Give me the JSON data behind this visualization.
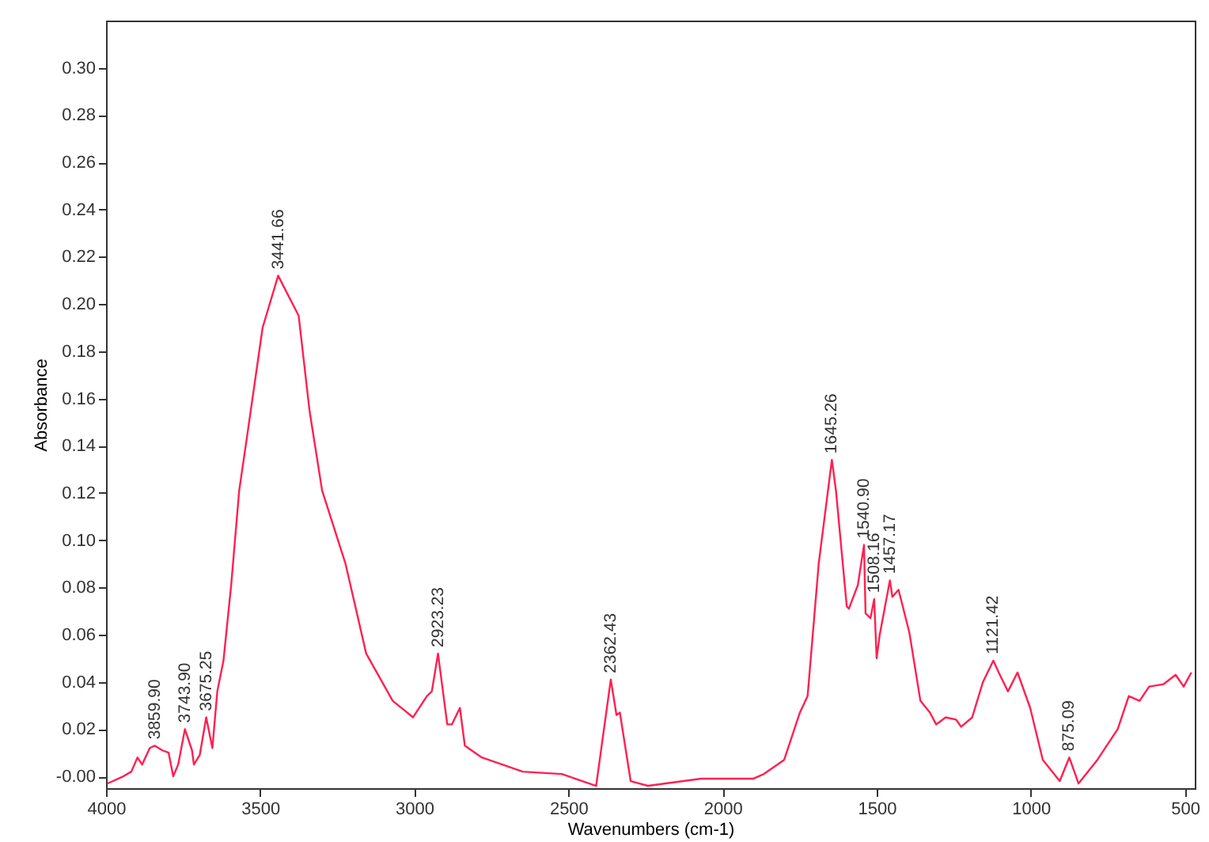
{
  "chart_data": {
    "type": "line",
    "xlabel": "Wavenumbers (cm-1)",
    "ylabel": "Absorbance",
    "xlim": [
      4000,
      468
    ],
    "ylim": [
      -0.005,
      0.32
    ],
    "xticks": [
      4000,
      3500,
      3000,
      2500,
      2000,
      1500,
      1000,
      500
    ],
    "yticks": [
      {
        "value": 0,
        "label": "-0.00"
      },
      {
        "value": 0.02,
        "label": "0.02"
      },
      {
        "value": 0.04,
        "label": "0.04"
      },
      {
        "value": 0.06,
        "label": "0.06"
      },
      {
        "value": 0.08,
        "label": "0.08"
      },
      {
        "value": 0.1,
        "label": "0.10"
      },
      {
        "value": 0.12,
        "label": "0.12"
      },
      {
        "value": 0.14,
        "label": "0.14"
      },
      {
        "value": 0.16,
        "label": "0.16"
      },
      {
        "value": 0.18,
        "label": "0.18"
      },
      {
        "value": 0.2,
        "label": "0.20"
      },
      {
        "value": 0.22,
        "label": "0.22"
      },
      {
        "value": 0.24,
        "label": "0.24"
      },
      {
        "value": 0.26,
        "label": "0.26"
      },
      {
        "value": 0.28,
        "label": "0.28"
      },
      {
        "value": 0.3,
        "label": "0.30"
      }
    ],
    "grid": false,
    "marker": "none",
    "line_style": "solid",
    "x": [
      3995,
      3944,
      3918,
      3898,
      3883,
      3858,
      3842,
      3817,
      3797,
      3782,
      3766,
      3744,
      3721,
      3715,
      3696,
      3675,
      3655,
      3639,
      3619,
      3594,
      3568,
      3538,
      3492,
      3441.66,
      3375,
      3340,
      3299,
      3223,
      3156,
      3070,
      3004,
      2959,
      2943,
      2923,
      2893,
      2878,
      2852,
      2836,
      2781,
      2648,
      2521,
      2410,
      2362.43,
      2344,
      2333,
      2298,
      2242,
      2070,
      1901,
      1866,
      1800,
      1749,
      1724,
      1688,
      1645.26,
      1632,
      1597,
      1590,
      1561,
      1541,
      1536,
      1520,
      1508,
      1500,
      1490,
      1457,
      1449,
      1429,
      1394,
      1358,
      1327,
      1307,
      1276,
      1242,
      1226,
      1190,
      1155,
      1121.42,
      1104,
      1074,
      1043,
      1002,
      961,
      906,
      875.09,
      845,
      784,
      718,
      682,
      647,
      616,
      570,
      530,
      504,
      479
    ],
    "series": [
      {
        "color": "#ff2050",
        "values": [
          -0.003,
          0.0,
          0.002,
          0.008,
          0.005,
          0.012,
          0.013,
          0.011,
          0.01,
          0.0,
          0.005,
          0.02,
          0.011,
          0.005,
          0.009,
          0.025,
          0.012,
          0.036,
          0.049,
          0.081,
          0.121,
          0.148,
          0.19,
          0.212,
          0.195,
          0.155,
          0.121,
          0.09,
          0.052,
          0.032,
          0.025,
          0.034,
          0.036,
          0.052,
          0.022,
          0.022,
          0.029,
          0.013,
          0.008,
          0.002,
          0.001,
          -0.004,
          0.041,
          0.026,
          0.027,
          -0.002,
          -0.004,
          -0.001,
          -0.001,
          0.001,
          0.007,
          0.027,
          0.034,
          0.09,
          0.134,
          0.121,
          0.072,
          0.071,
          0.081,
          0.098,
          0.069,
          0.067,
          0.075,
          0.05,
          0.06,
          0.083,
          0.076,
          0.079,
          0.061,
          0.032,
          0.027,
          0.022,
          0.025,
          0.024,
          0.021,
          0.025,
          0.04,
          0.049,
          0.044,
          0.036,
          0.044,
          0.029,
          0.007,
          -0.002,
          0.008,
          -0.003,
          0.007,
          0.02,
          0.034,
          0.032,
          0.038,
          0.039,
          0.043,
          0.038,
          0.044
        ]
      }
    ],
    "annotations": [
      {
        "text": "3859.90",
        "x": 3842,
        "y": 0.013
      },
      {
        "text": "3743.90",
        "x": 3744,
        "y": 0.02
      },
      {
        "text": "3675.25",
        "x": 3675,
        "y": 0.025
      },
      {
        "text": "3441.66",
        "x": 3441.66,
        "y": 0.212
      },
      {
        "text": "2923.23",
        "x": 2923,
        "y": 0.052
      },
      {
        "text": "2362.43",
        "x": 2362.43,
        "y": 0.041
      },
      {
        "text": "1645.26",
        "x": 1645.26,
        "y": 0.134
      },
      {
        "text": "1540.90",
        "x": 1541,
        "y": 0.098
      },
      {
        "text": "1508.16",
        "x": 1508,
        "y": 0.075
      },
      {
        "text": "1457.17",
        "x": 1457,
        "y": 0.083
      },
      {
        "text": "1121.42",
        "x": 1121.42,
        "y": 0.049
      },
      {
        "text": "875.09",
        "x": 875.09,
        "y": 0.008
      }
    ]
  }
}
